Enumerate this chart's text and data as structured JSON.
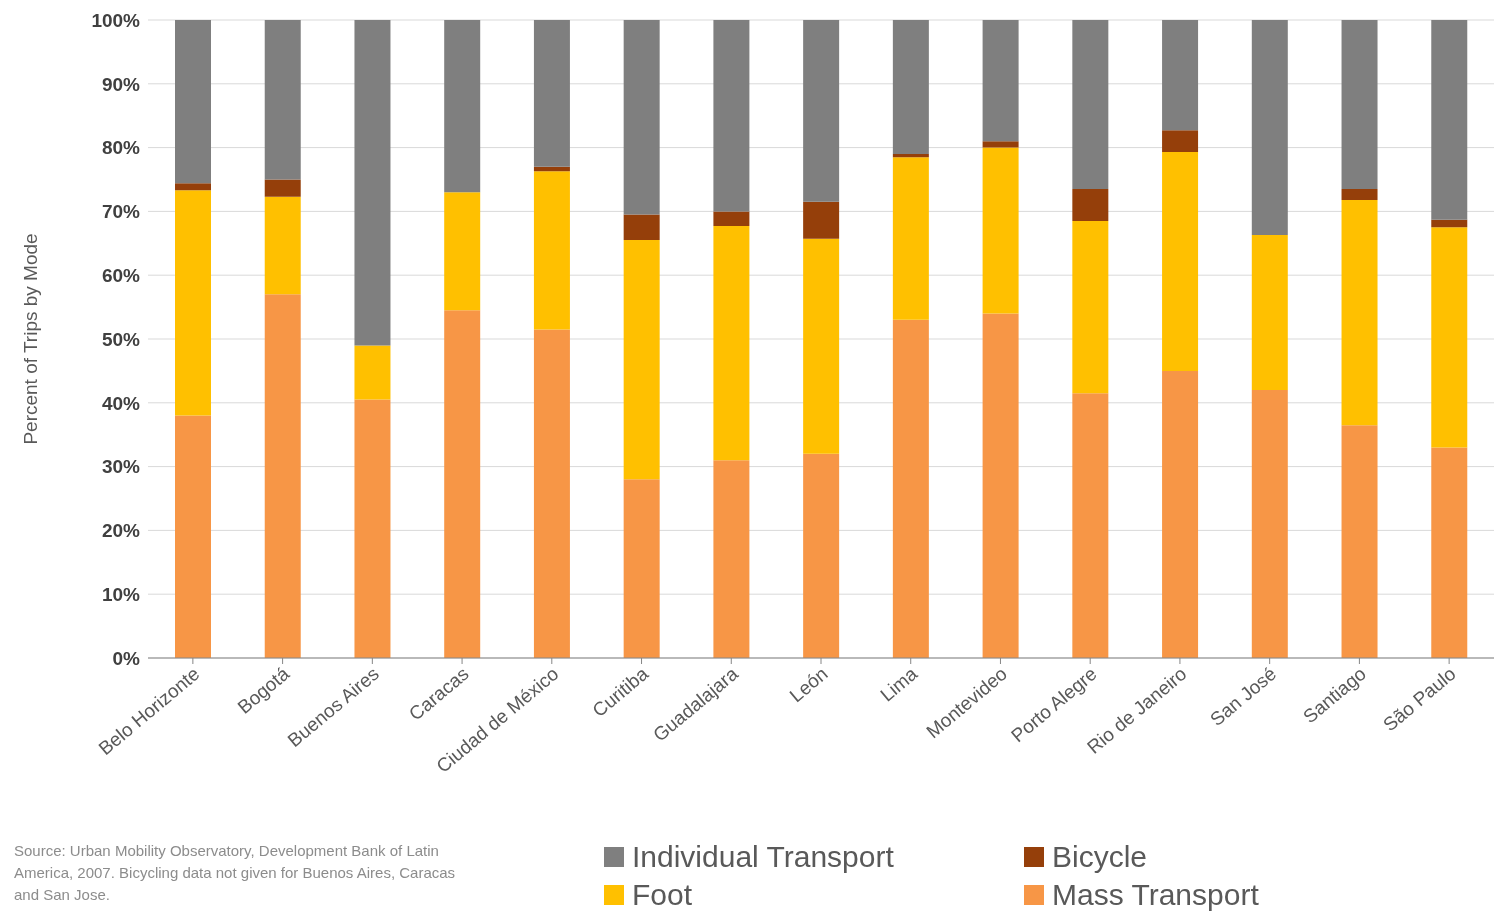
{
  "chart_data": {
    "type": "bar",
    "stacked": true,
    "ylabel": "Percent of Trips by Mode",
    "categories": [
      "Belo Horizonte",
      "Bogotá",
      "Buenos Aires",
      "Caracas",
      "Ciudad de México",
      "Curitiba",
      "Guadalajara",
      "León",
      "Lima",
      "Montevideo",
      "Porto Alegre",
      "Rio de Janeiro",
      "San José",
      "Santiago",
      "São Paulo"
    ],
    "series": [
      {
        "name": "Mass Transport",
        "color": "#f79646",
        "values": [
          38,
          57,
          40.5,
          54.5,
          51.5,
          28,
          31,
          32,
          53,
          54,
          41.5,
          45,
          42,
          36.5,
          33
        ]
      },
      {
        "name": "Foot",
        "color": "#ffc000",
        "values": [
          35.3,
          15.3,
          8.5,
          18.5,
          24.8,
          37.5,
          36.7,
          33.7,
          25.5,
          26,
          27,
          34.3,
          24.3,
          35.3,
          34.5
        ]
      },
      {
        "name": "Bicycle",
        "color": "#953f0a",
        "values": [
          1.1,
          2.7,
          null,
          null,
          0.7,
          4,
          2.3,
          5.8,
          0.5,
          1,
          5,
          3.4,
          null,
          1.7,
          1.2
        ]
      },
      {
        "name": "Individual Transport",
        "color": "#7f7f7f",
        "values": [
          25.6,
          25,
          51,
          27,
          23,
          30.5,
          30,
          28.5,
          21,
          19,
          26.5,
          17.3,
          33.7,
          26.5,
          31.3
        ]
      }
    ],
    "ylim": [
      0,
      100
    ],
    "yticks": [
      {
        "value": 0,
        "label": "0%"
      },
      {
        "value": 10,
        "label": "10%"
      },
      {
        "value": 20,
        "label": "20%"
      },
      {
        "value": 30,
        "label": "30%"
      },
      {
        "value": 40,
        "label": "40%"
      },
      {
        "value": 50,
        "label": "50%"
      },
      {
        "value": 60,
        "label": "60%"
      },
      {
        "value": 70,
        "label": "70%"
      },
      {
        "value": 80,
        "label": "80%"
      },
      {
        "value": 90,
        "label": "90%"
      },
      {
        "value": 100,
        "label": "100%"
      }
    ],
    "grid": "y",
    "legend": "bottom",
    "annotations": [
      "Source: Urban Mobility Observatory, Development Bank of Latin America, 2007. Bicycling data not given for Buenos Aires, Caracas and San Jose."
    ]
  }
}
